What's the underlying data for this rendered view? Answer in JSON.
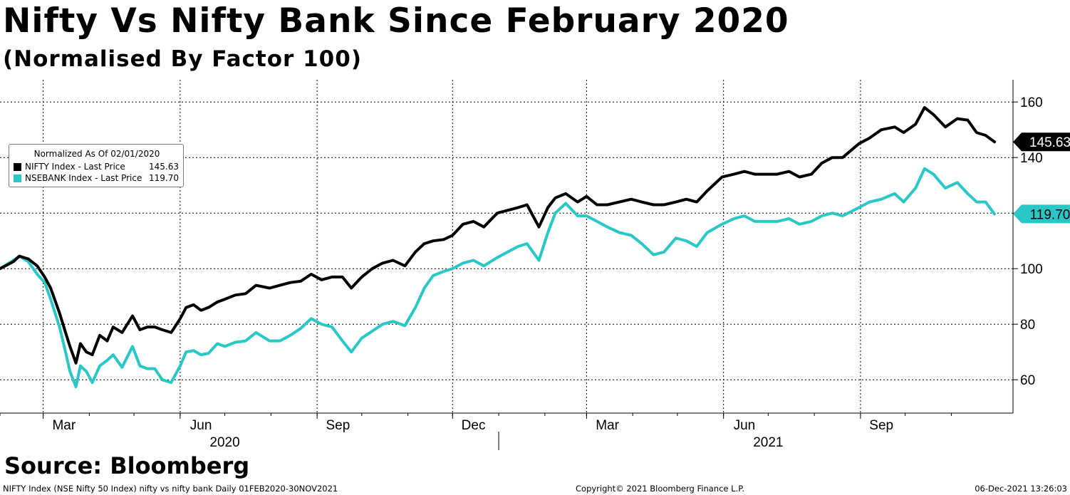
{
  "title": "Nifty Vs Nifty Bank Since February 2020",
  "subtitle": "(Normalised By Factor 100)",
  "source": "Source: Bloomberg",
  "footer": {
    "left": "NIFTY Index (NSE Nifty 50 Index) nifty vs nifty bank  Daily 01FEB2020-30NOV2021",
    "center": "Copyright© 2021 Bloomberg Finance L.P.",
    "right": "06-Dec-2021 13:26:03"
  },
  "legend": {
    "title": "Normalized As Of 02/01/2020",
    "items": [
      {
        "name": "NIFTY Index - Last Price",
        "value": "145.63",
        "color": "#000000"
      },
      {
        "name": "NSEBANK Index - Last Price",
        "value": "119.70",
        "color": "#2ac7c7"
      }
    ]
  },
  "chart_data": {
    "type": "line",
    "x_months": [
      "2020-02",
      "2020-03",
      "2020-04",
      "2020-05",
      "2020-06",
      "2020-07",
      "2020-08",
      "2020-09",
      "2020-10",
      "2020-11",
      "2020-12",
      "2021-01",
      "2021-02",
      "2021-03",
      "2021-04",
      "2021-05",
      "2021-06",
      "2021-07",
      "2021-08",
      "2021-09",
      "2021-10",
      "2021-11"
    ],
    "x_tick_labels": [
      "Mar",
      "Jun",
      "Sep",
      "Dec",
      "Mar",
      "Jun",
      "Sep"
    ],
    "x_tick_months": [
      "2020-03",
      "2020-06",
      "2020-09",
      "2020-12",
      "2021-03",
      "2021-06",
      "2021-09"
    ],
    "year_labels": [
      "2020",
      "2021"
    ],
    "y_ticks": [
      60,
      80,
      100,
      120,
      140,
      160
    ],
    "ylim": [
      48,
      168
    ],
    "grid": true,
    "legend_position": "top-left",
    "series": [
      {
        "name": "NIFTY Index - Last Price",
        "color": "#000000",
        "last_label": "145.63",
        "values": [
          [
            "2020-02-01",
            100
          ],
          [
            "2020-02-10",
            102.5
          ],
          [
            "2020-02-14",
            104.5
          ],
          [
            "2020-02-20",
            103.5
          ],
          [
            "2020-02-26",
            101
          ],
          [
            "2020-03-02",
            97
          ],
          [
            "2020-03-06",
            93
          ],
          [
            "2020-03-12",
            84
          ],
          [
            "2020-03-16",
            77
          ],
          [
            "2020-03-19",
            72
          ],
          [
            "2020-03-23",
            66
          ],
          [
            "2020-03-26",
            73
          ],
          [
            "2020-03-30",
            70
          ],
          [
            "2020-04-03",
            69
          ],
          [
            "2020-04-08",
            76
          ],
          [
            "2020-04-13",
            74
          ],
          [
            "2020-04-17",
            79
          ],
          [
            "2020-04-23",
            77
          ],
          [
            "2020-04-30",
            83
          ],
          [
            "2020-05-05",
            78
          ],
          [
            "2020-05-10",
            79
          ],
          [
            "2020-05-15",
            79
          ],
          [
            "2020-05-20",
            78
          ],
          [
            "2020-05-26",
            77
          ],
          [
            "2020-06-01",
            82
          ],
          [
            "2020-06-05",
            86
          ],
          [
            "2020-06-10",
            87
          ],
          [
            "2020-06-15",
            85
          ],
          [
            "2020-06-20",
            86
          ],
          [
            "2020-06-26",
            88
          ],
          [
            "2020-07-01",
            89
          ],
          [
            "2020-07-08",
            90.5
          ],
          [
            "2020-07-15",
            91
          ],
          [
            "2020-07-22",
            94
          ],
          [
            "2020-07-31",
            93
          ],
          [
            "2020-08-07",
            94
          ],
          [
            "2020-08-14",
            95
          ],
          [
            "2020-08-21",
            95.5
          ],
          [
            "2020-08-28",
            98
          ],
          [
            "2020-09-04",
            96
          ],
          [
            "2020-09-11",
            97
          ],
          [
            "2020-09-18",
            97
          ],
          [
            "2020-09-24",
            93
          ],
          [
            "2020-10-01",
            97
          ],
          [
            "2020-10-08",
            100
          ],
          [
            "2020-10-15",
            102
          ],
          [
            "2020-10-22",
            103
          ],
          [
            "2020-10-30",
            101
          ],
          [
            "2020-11-06",
            106
          ],
          [
            "2020-11-12",
            109
          ],
          [
            "2020-11-18",
            110
          ],
          [
            "2020-11-25",
            110.5
          ],
          [
            "2020-12-01",
            112
          ],
          [
            "2020-12-08",
            116
          ],
          [
            "2020-12-15",
            117
          ],
          [
            "2020-12-22",
            115
          ],
          [
            "2020-12-31",
            120
          ],
          [
            "2021-01-07",
            121
          ],
          [
            "2021-01-14",
            122
          ],
          [
            "2021-01-20",
            123
          ],
          [
            "2021-01-28",
            115
          ],
          [
            "2021-02-03",
            122
          ],
          [
            "2021-02-08",
            125.5
          ],
          [
            "2021-02-15",
            127
          ],
          [
            "2021-02-23",
            124
          ],
          [
            "2021-03-01",
            126
          ],
          [
            "2021-03-08",
            123
          ],
          [
            "2021-03-15",
            123
          ],
          [
            "2021-03-23",
            124
          ],
          [
            "2021-03-31",
            125
          ],
          [
            "2021-04-07",
            124
          ],
          [
            "2021-04-15",
            123
          ],
          [
            "2021-04-22",
            123
          ],
          [
            "2021-04-30",
            124
          ],
          [
            "2021-05-07",
            125
          ],
          [
            "2021-05-14",
            124
          ],
          [
            "2021-05-21",
            128
          ],
          [
            "2021-05-31",
            133
          ],
          [
            "2021-06-08",
            134
          ],
          [
            "2021-06-15",
            135
          ],
          [
            "2021-06-22",
            134
          ],
          [
            "2021-06-30",
            134
          ],
          [
            "2021-07-07",
            134
          ],
          [
            "2021-07-15",
            135
          ],
          [
            "2021-07-22",
            133
          ],
          [
            "2021-07-30",
            134
          ],
          [
            "2021-08-06",
            138
          ],
          [
            "2021-08-13",
            140
          ],
          [
            "2021-08-20",
            140
          ],
          [
            "2021-08-31",
            145
          ],
          [
            "2021-09-07",
            147
          ],
          [
            "2021-09-15",
            150
          ],
          [
            "2021-09-24",
            151
          ],
          [
            "2021-09-30",
            149
          ],
          [
            "2021-10-08",
            152
          ],
          [
            "2021-10-14",
            158
          ],
          [
            "2021-10-20",
            155.5
          ],
          [
            "2021-10-28",
            151
          ],
          [
            "2021-11-05",
            154
          ],
          [
            "2021-11-12",
            153.5
          ],
          [
            "2021-11-18",
            149
          ],
          [
            "2021-11-24",
            148
          ],
          [
            "2021-11-30",
            145.63
          ]
        ]
      },
      {
        "name": "NSEBANK Index - Last Price",
        "color": "#2ac7c7",
        "last_label": "119.70",
        "values": [
          [
            "2020-02-01",
            100
          ],
          [
            "2020-02-10",
            103
          ],
          [
            "2020-02-14",
            104.5
          ],
          [
            "2020-02-20",
            102.5
          ],
          [
            "2020-02-26",
            98
          ],
          [
            "2020-03-02",
            95
          ],
          [
            "2020-03-06",
            89
          ],
          [
            "2020-03-12",
            79
          ],
          [
            "2020-03-16",
            70
          ],
          [
            "2020-03-19",
            63
          ],
          [
            "2020-03-23",
            57.5
          ],
          [
            "2020-03-26",
            65
          ],
          [
            "2020-03-30",
            63
          ],
          [
            "2020-04-03",
            59
          ],
          [
            "2020-04-08",
            65
          ],
          [
            "2020-04-13",
            67
          ],
          [
            "2020-04-17",
            69
          ],
          [
            "2020-04-23",
            64.5
          ],
          [
            "2020-04-30",
            72
          ],
          [
            "2020-05-05",
            65
          ],
          [
            "2020-05-10",
            64
          ],
          [
            "2020-05-15",
            64
          ],
          [
            "2020-05-20",
            60
          ],
          [
            "2020-05-26",
            59
          ],
          [
            "2020-06-01",
            65
          ],
          [
            "2020-06-05",
            70
          ],
          [
            "2020-06-10",
            70.5
          ],
          [
            "2020-06-15",
            69
          ],
          [
            "2020-06-20",
            69.5
          ],
          [
            "2020-06-26",
            73
          ],
          [
            "2020-07-01",
            72
          ],
          [
            "2020-07-08",
            73.5
          ],
          [
            "2020-07-15",
            74
          ],
          [
            "2020-07-22",
            77
          ],
          [
            "2020-07-31",
            74
          ],
          [
            "2020-08-07",
            74
          ],
          [
            "2020-08-14",
            76
          ],
          [
            "2020-08-21",
            78.5
          ],
          [
            "2020-08-28",
            82
          ],
          [
            "2020-09-04",
            80
          ],
          [
            "2020-09-11",
            79
          ],
          [
            "2020-09-18",
            74
          ],
          [
            "2020-09-24",
            70
          ],
          [
            "2020-10-01",
            75
          ],
          [
            "2020-10-08",
            77.5
          ],
          [
            "2020-10-15",
            80
          ],
          [
            "2020-10-22",
            81
          ],
          [
            "2020-10-30",
            79.5
          ],
          [
            "2020-11-06",
            86
          ],
          [
            "2020-11-12",
            93
          ],
          [
            "2020-11-18",
            97.5
          ],
          [
            "2020-11-25",
            99
          ],
          [
            "2020-12-01",
            100
          ],
          [
            "2020-12-08",
            102
          ],
          [
            "2020-12-15",
            103
          ],
          [
            "2020-12-22",
            101
          ],
          [
            "2020-12-31",
            104
          ],
          [
            "2021-01-07",
            106
          ],
          [
            "2021-01-14",
            108
          ],
          [
            "2021-01-20",
            109
          ],
          [
            "2021-01-28",
            103
          ],
          [
            "2021-02-03",
            113
          ],
          [
            "2021-02-08",
            120
          ],
          [
            "2021-02-15",
            123.5
          ],
          [
            "2021-02-23",
            119
          ],
          [
            "2021-03-01",
            119
          ],
          [
            "2021-03-08",
            117
          ],
          [
            "2021-03-15",
            115
          ],
          [
            "2021-03-23",
            113
          ],
          [
            "2021-03-31",
            112
          ],
          [
            "2021-04-07",
            109
          ],
          [
            "2021-04-15",
            105
          ],
          [
            "2021-04-22",
            106
          ],
          [
            "2021-04-30",
            111
          ],
          [
            "2021-05-07",
            110
          ],
          [
            "2021-05-14",
            108
          ],
          [
            "2021-05-21",
            113
          ],
          [
            "2021-05-31",
            116
          ],
          [
            "2021-06-08",
            118
          ],
          [
            "2021-06-15",
            119
          ],
          [
            "2021-06-22",
            117
          ],
          [
            "2021-06-30",
            117
          ],
          [
            "2021-07-07",
            117
          ],
          [
            "2021-07-15",
            118
          ],
          [
            "2021-07-22",
            116
          ],
          [
            "2021-07-30",
            117
          ],
          [
            "2021-08-06",
            119
          ],
          [
            "2021-08-13",
            120
          ],
          [
            "2021-08-20",
            119
          ],
          [
            "2021-08-31",
            122
          ],
          [
            "2021-09-07",
            124
          ],
          [
            "2021-09-15",
            125
          ],
          [
            "2021-09-24",
            127
          ],
          [
            "2021-09-30",
            124
          ],
          [
            "2021-10-08",
            129
          ],
          [
            "2021-10-14",
            136
          ],
          [
            "2021-10-20",
            134
          ],
          [
            "2021-10-28",
            129
          ],
          [
            "2021-11-05",
            131
          ],
          [
            "2021-11-12",
            127
          ],
          [
            "2021-11-18",
            124
          ],
          [
            "2021-11-24",
            124
          ],
          [
            "2021-11-30",
            119.7
          ]
        ]
      }
    ]
  }
}
